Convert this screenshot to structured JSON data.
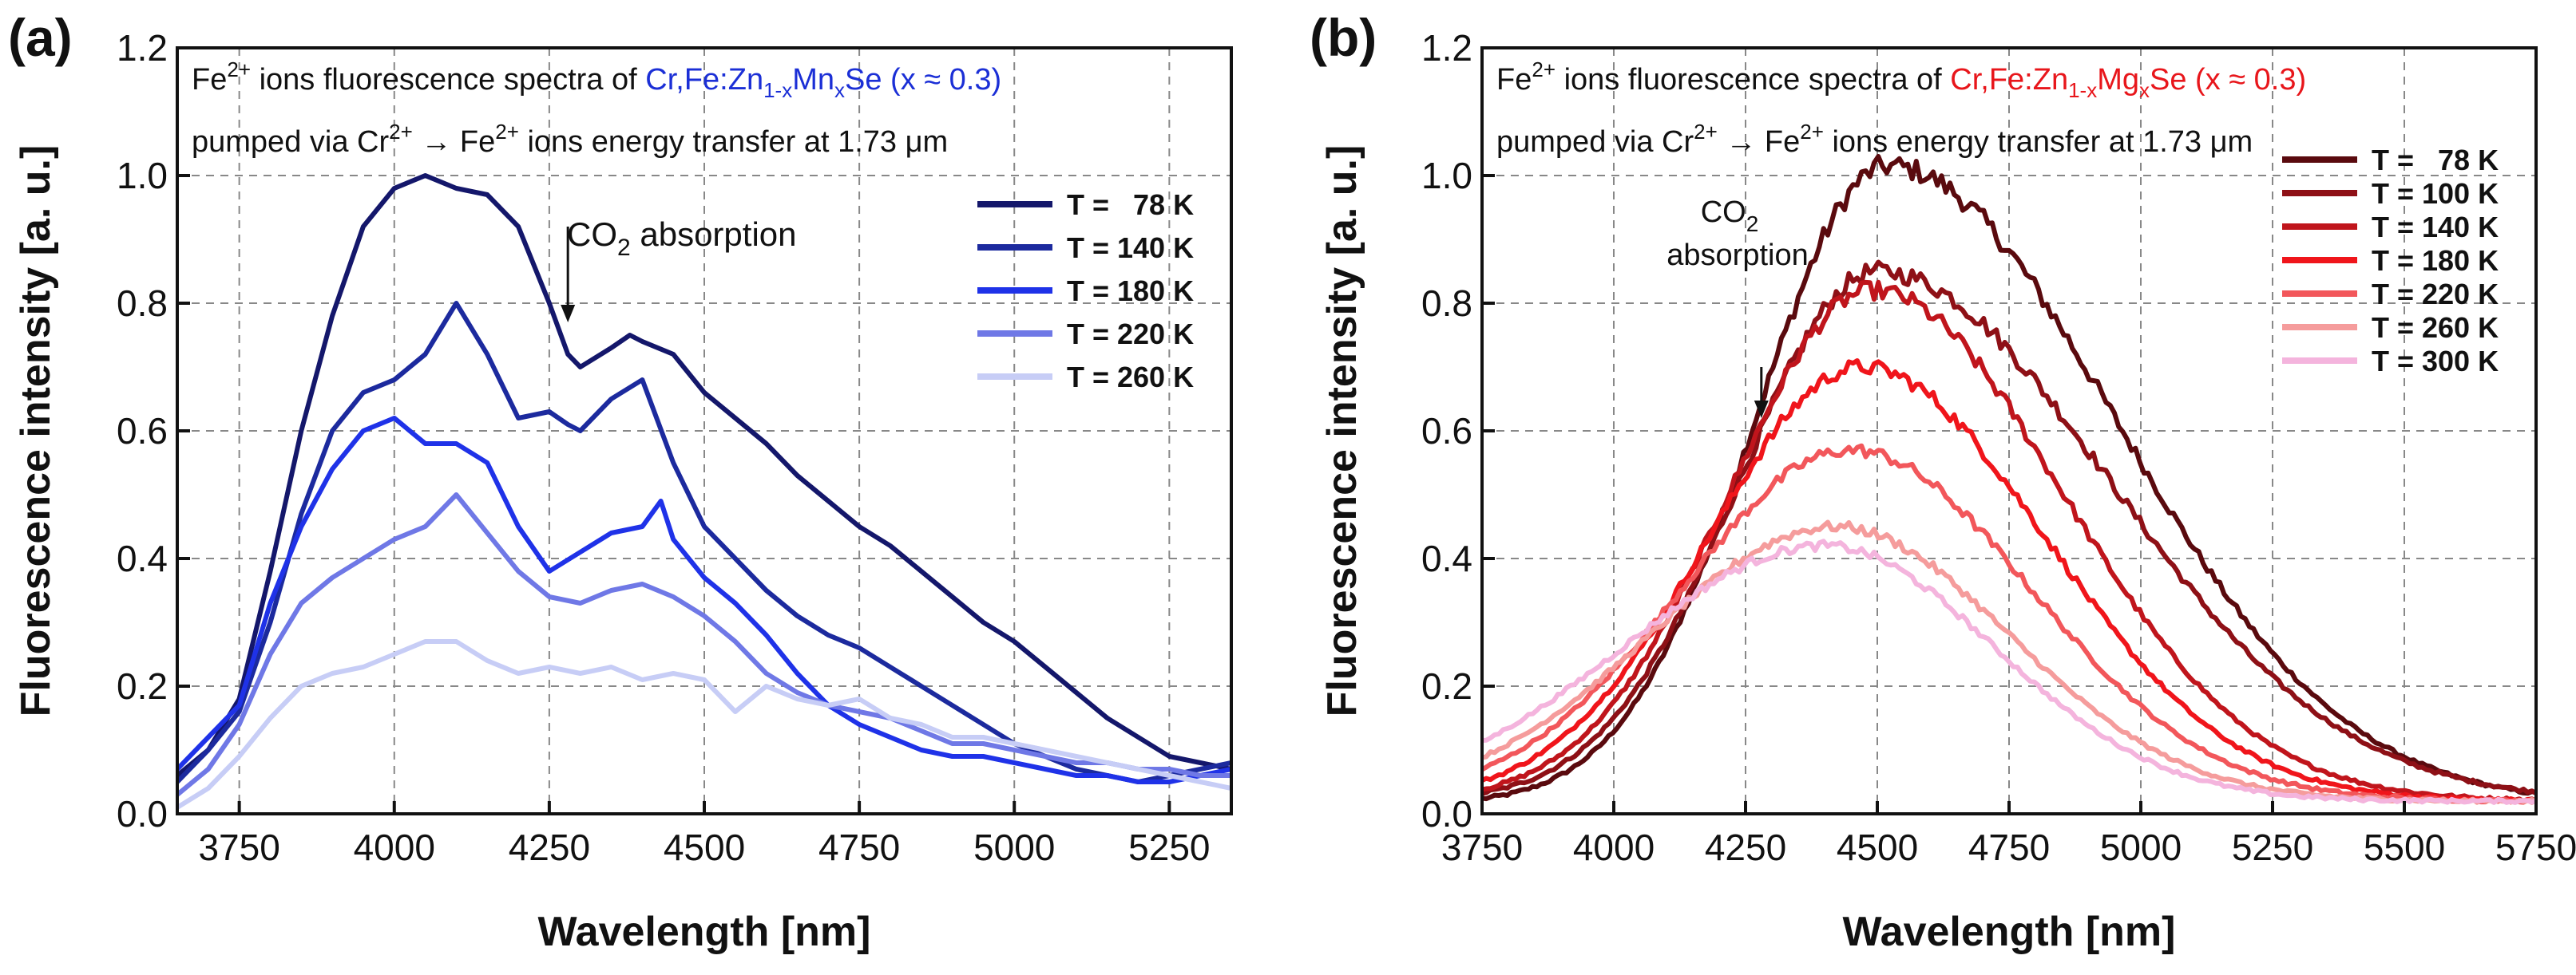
{
  "chart_data": [
    {
      "type": "line",
      "panel_label": "(a)",
      "xlabel": "Wavelength [nm]",
      "ylabel": "Fluorescence intensity [a. u.]",
      "xlim": [
        3650,
        5350
      ],
      "ylim": [
        0,
        1.2
      ],
      "x_ticks": [
        "3750",
        "4000",
        "4250",
        "4500",
        "4750",
        "5000",
        "5250"
      ],
      "y_ticks": [
        "0.0",
        "0.2",
        "0.4",
        "0.6",
        "0.8",
        "1.0",
        "1.2"
      ],
      "grid": true,
      "note_line1": {
        "ion": "Fe",
        "ion_sup": "2+",
        "text": " ions fluorescence spectra of ",
        "mat_a": "Cr,Fe:Zn",
        "mat_sub1": "1-x",
        "mat_b": "Mn",
        "mat_sub2": "x",
        "mat_c": "Se (x ≈ 0.3)",
        "mat_color": "#1b2fd6"
      },
      "note_line2": {
        "pre": "pumped via Cr",
        "sup1": "2+",
        "arrow": " → Fe",
        "sup2": "2+",
        "post": " ions energy transfer at 1.73 μm"
      },
      "annotation": {
        "text_a": "CO",
        "sub": "2",
        "text_b": " absorption",
        "x": 4280,
        "y_from": 0.92,
        "y_to": 0.77
      },
      "legend_position": "top-right",
      "series": [
        {
          "name": "T =   78 K",
          "color": "#14176b",
          "x": [
            3650,
            3700,
            3750,
            3800,
            3850,
            3900,
            3950,
            4000,
            4050,
            4100,
            4150,
            4200,
            4250,
            4280,
            4300,
            4350,
            4380,
            4400,
            4450,
            4500,
            4550,
            4600,
            4650,
            4700,
            4750,
            4800,
            4850,
            4900,
            4950,
            5000,
            5050,
            5100,
            5150,
            5200,
            5250,
            5300,
            5350
          ],
          "y": [
            0.06,
            0.1,
            0.18,
            0.38,
            0.6,
            0.78,
            0.92,
            0.98,
            1.0,
            0.98,
            0.97,
            0.92,
            0.8,
            0.72,
            0.7,
            0.73,
            0.75,
            0.74,
            0.72,
            0.66,
            0.62,
            0.58,
            0.53,
            0.49,
            0.45,
            0.42,
            0.38,
            0.34,
            0.3,
            0.27,
            0.23,
            0.19,
            0.15,
            0.12,
            0.09,
            0.08,
            0.07
          ]
        },
        {
          "name": "T = 140 K",
          "color": "#1c2a9e",
          "x": [
            3650,
            3700,
            3750,
            3800,
            3850,
            3900,
            3950,
            4000,
            4050,
            4100,
            4150,
            4200,
            4250,
            4280,
            4300,
            4350,
            4400,
            4450,
            4500,
            4550,
            4600,
            4650,
            4700,
            4750,
            4800,
            4850,
            4900,
            4950,
            5000,
            5050,
            5100,
            5150,
            5200,
            5250,
            5300,
            5350
          ],
          "y": [
            0.05,
            0.1,
            0.16,
            0.3,
            0.47,
            0.6,
            0.66,
            0.68,
            0.72,
            0.8,
            0.72,
            0.62,
            0.63,
            0.61,
            0.6,
            0.65,
            0.68,
            0.55,
            0.45,
            0.4,
            0.35,
            0.31,
            0.28,
            0.26,
            0.23,
            0.2,
            0.17,
            0.14,
            0.11,
            0.09,
            0.07,
            0.06,
            0.05,
            0.06,
            0.07,
            0.08
          ]
        },
        {
          "name": "T = 180 K",
          "color": "#1f32e8",
          "x": [
            3650,
            3700,
            3750,
            3800,
            3850,
            3900,
            3950,
            4000,
            4050,
            4100,
            4150,
            4200,
            4250,
            4300,
            4350,
            4400,
            4430,
            4450,
            4500,
            4550,
            4600,
            4650,
            4700,
            4750,
            4800,
            4850,
            4900,
            4950,
            5000,
            5050,
            5100,
            5150,
            5200,
            5250,
            5300,
            5350
          ],
          "y": [
            0.07,
            0.12,
            0.17,
            0.33,
            0.45,
            0.54,
            0.6,
            0.62,
            0.58,
            0.58,
            0.55,
            0.45,
            0.38,
            0.41,
            0.44,
            0.45,
            0.49,
            0.43,
            0.37,
            0.33,
            0.28,
            0.22,
            0.17,
            0.14,
            0.12,
            0.1,
            0.09,
            0.09,
            0.08,
            0.07,
            0.06,
            0.06,
            0.05,
            0.05,
            0.06,
            0.07
          ]
        },
        {
          "name": "T = 220 K",
          "color": "#6f78e6",
          "x": [
            3650,
            3700,
            3750,
            3800,
            3850,
            3900,
            3950,
            4000,
            4050,
            4100,
            4150,
            4200,
            4250,
            4300,
            4350,
            4400,
            4450,
            4500,
            4550,
            4600,
            4650,
            4700,
            4750,
            4800,
            4850,
            4900,
            4950,
            5000,
            5050,
            5100,
            5150,
            5200,
            5250,
            5300,
            5350
          ],
          "y": [
            0.03,
            0.07,
            0.14,
            0.25,
            0.33,
            0.37,
            0.4,
            0.43,
            0.45,
            0.5,
            0.44,
            0.38,
            0.34,
            0.33,
            0.35,
            0.36,
            0.34,
            0.31,
            0.27,
            0.22,
            0.19,
            0.17,
            0.16,
            0.15,
            0.13,
            0.11,
            0.11,
            0.1,
            0.09,
            0.08,
            0.08,
            0.07,
            0.07,
            0.06,
            0.06
          ]
        },
        {
          "name": "T = 260 K",
          "color": "#c7cdf6",
          "x": [
            3650,
            3700,
            3750,
            3800,
            3850,
            3900,
            3950,
            4000,
            4050,
            4100,
            4150,
            4200,
            4250,
            4300,
            4350,
            4400,
            4450,
            4500,
            4550,
            4600,
            4650,
            4700,
            4750,
            4800,
            4850,
            4900,
            4950,
            5000,
            5050,
            5100,
            5150,
            5200,
            5250,
            5300,
            5350
          ],
          "y": [
            0.01,
            0.04,
            0.09,
            0.15,
            0.2,
            0.22,
            0.23,
            0.25,
            0.27,
            0.27,
            0.24,
            0.22,
            0.23,
            0.22,
            0.23,
            0.21,
            0.22,
            0.21,
            0.16,
            0.2,
            0.18,
            0.17,
            0.18,
            0.15,
            0.14,
            0.12,
            0.12,
            0.11,
            0.1,
            0.09,
            0.08,
            0.07,
            0.06,
            0.05,
            0.04
          ]
        }
      ]
    },
    {
      "type": "line",
      "panel_label": "(b)",
      "xlabel": "Wavelength [nm]",
      "ylabel": "Fluorescence intensity [a. u.]",
      "xlim": [
        3750,
        5750
      ],
      "ylim": [
        0,
        1.2
      ],
      "x_ticks": [
        "3750",
        "4000",
        "4250",
        "4500",
        "4750",
        "5000",
        "5250",
        "5500",
        "5750"
      ],
      "y_ticks": [
        "0.0",
        "0.2",
        "0.4",
        "0.6",
        "0.8",
        "1.0",
        "1.2"
      ],
      "grid": true,
      "note_line1": {
        "ion": "Fe",
        "ion_sup": "2+",
        "text": " ions fluorescence spectra of ",
        "mat_a": "Cr,Fe:Zn",
        "mat_sub1": "1-x",
        "mat_b": "Mg",
        "mat_sub2": "x",
        "mat_c": "Se (x ≈ 0.3)",
        "mat_color": "#e8161b"
      },
      "note_line2": {
        "pre": "pumped via Cr",
        "sup1": "2+",
        "arrow": " → Fe",
        "sup2": "2+",
        "post": " ions energy transfer at 1.73 μm"
      },
      "annotation": {
        "text_a": "CO",
        "sub": "2",
        "text_b": "absorption",
        "x": 4280,
        "y_from": 0.7,
        "y_to": 0.62
      },
      "legend_position": "top-right",
      "series": [
        {
          "name": "T =   78 K",
          "color": "#5a0a0e",
          "peak": 4520,
          "amp": 1.0,
          "sl": 250,
          "sr": 430,
          "base": 0.015
        },
        {
          "name": "T = 100 K",
          "color": "#8e1016",
          "peak": 4500,
          "amp": 0.83,
          "sl": 260,
          "sr": 440,
          "base": 0.02
        },
        {
          "name": "T = 140 K",
          "color": "#c0151c",
          "peak": 4490,
          "amp": 0.8,
          "sl": 270,
          "sr": 360,
          "base": 0.02
        },
        {
          "name": "T = 180 K",
          "color": "#f0151b",
          "peak": 4470,
          "amp": 0.68,
          "sl": 290,
          "sr": 350,
          "base": 0.02
        },
        {
          "name": "T = 220 K",
          "color": "#f2575b",
          "peak": 4450,
          "amp": 0.55,
          "sl": 320,
          "sr": 340,
          "base": 0.02
        },
        {
          "name": "T = 260 K",
          "color": "#f59c9c",
          "peak": 4420,
          "amp": 0.43,
          "sl": 350,
          "sr": 330,
          "base": 0.02
        },
        {
          "name": "T = 300 K",
          "color": "#f4b4dd",
          "peak": 4400,
          "amp": 0.4,
          "sl": 380,
          "sr": 320,
          "base": 0.02
        }
      ]
    }
  ]
}
